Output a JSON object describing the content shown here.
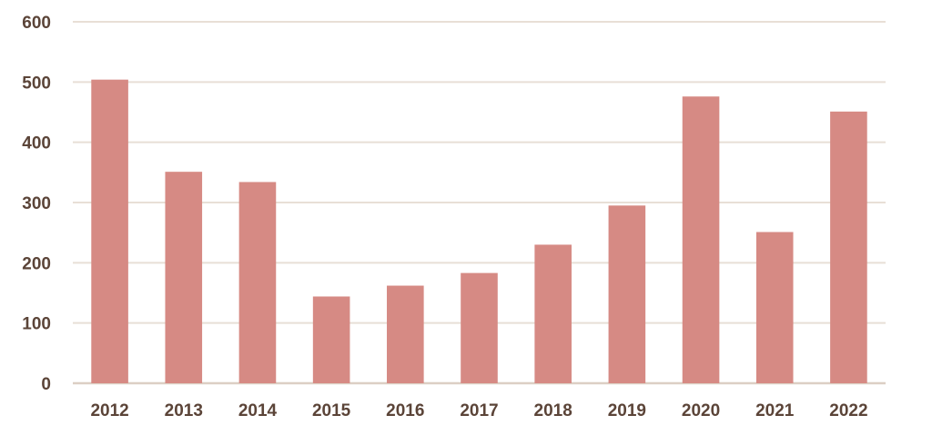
{
  "chart_data": {
    "type": "bar",
    "title": "",
    "xlabel": "",
    "ylabel": "",
    "categories": [
      "2012",
      "2013",
      "2014",
      "2015",
      "2016",
      "2017",
      "2018",
      "2019",
      "2020",
      "2021",
      "2022"
    ],
    "values": [
      504,
      351,
      334,
      144,
      162,
      183,
      230,
      295,
      476,
      251,
      451
    ],
    "ylim": [
      0,
      600
    ],
    "yticks": [
      0,
      100,
      200,
      300,
      400,
      500,
      600
    ],
    "ytick_labels": [
      "0",
      "100",
      "200",
      "300",
      "400",
      "500",
      "600"
    ],
    "grid": true,
    "legend": "none",
    "colors": {
      "bar": "#D68A84",
      "grid": "#E8DFD6",
      "baseline": "#DCCFC4",
      "tick_text": "#5B4438"
    }
  }
}
